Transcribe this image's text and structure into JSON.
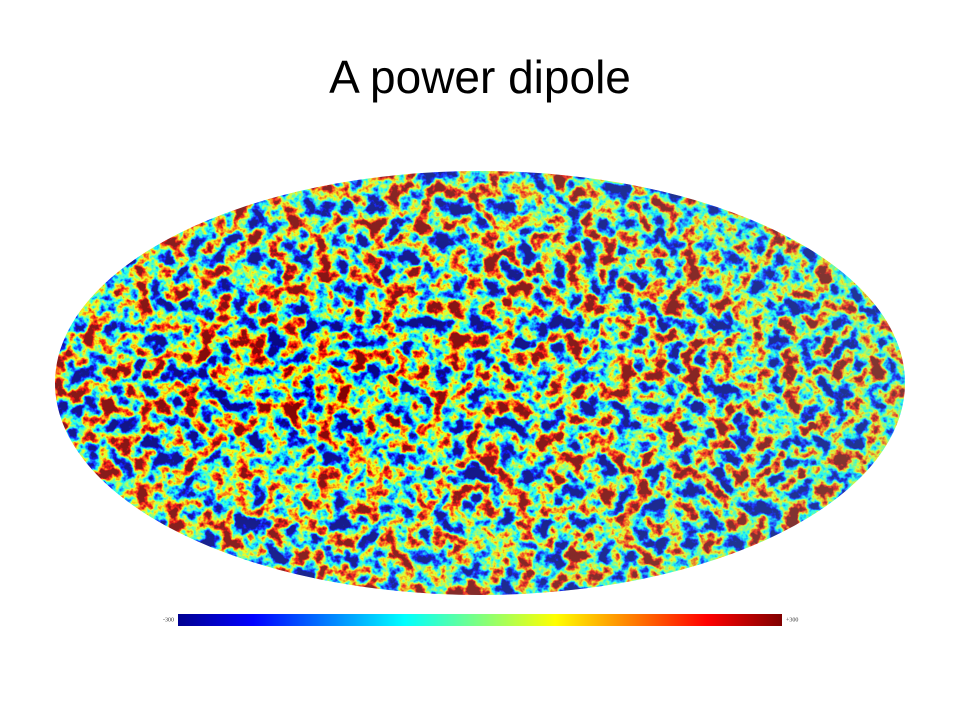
{
  "title": "A power dipole",
  "colorbar": {
    "min_label": "-300",
    "max_label": "+300"
  }
}
